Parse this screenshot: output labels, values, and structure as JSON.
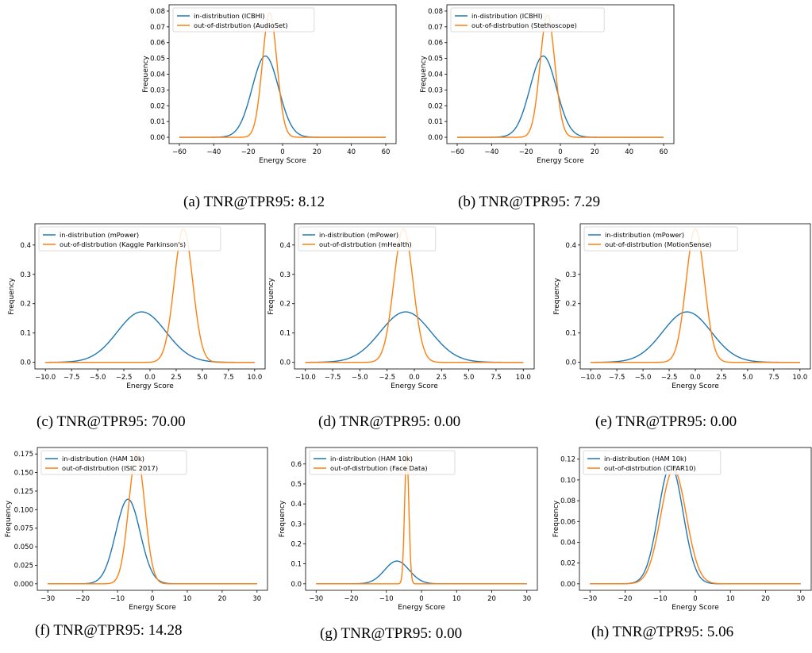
{
  "colors": {
    "in": "#1f77b4",
    "out": "#ff7f0e"
  },
  "chart_data": [
    {
      "id": "a",
      "type": "line",
      "caption": "(a) TNR@TPR95: 8.12",
      "xlabel": "Energy Score",
      "ylabel": "Frequency",
      "xlim": [
        -60,
        60
      ],
      "ylim": [
        0,
        0.08
      ],
      "xticks": [
        -60,
        -40,
        -20,
        0,
        20,
        40,
        60
      ],
      "xtick_labels": [
        "−60",
        "−40",
        "−20",
        "0",
        "20",
        "40",
        "60"
      ],
      "yticks": [
        0,
        0.01,
        0.02,
        0.03,
        0.04,
        0.05,
        0.06,
        0.07,
        0.08
      ],
      "ytick_labels": [
        "0.00",
        "0.01",
        "0.02",
        "0.03",
        "0.04",
        "0.05",
        "0.06",
        "0.07",
        "0.08"
      ],
      "legend_position": "upper-left",
      "series": [
        {
          "name": "in-distribution (ICBHI)",
          "color": "#1f77b4",
          "mean": -10,
          "std": 7.7,
          "peak": 0.0515,
          "x_range": [
            -60,
            60
          ]
        },
        {
          "name": "out-of-distrbution (AudioSet)",
          "color": "#ff7f0e",
          "mean": -7.5,
          "std": 4.2,
          "peak": 0.079,
          "x_range": [
            -60,
            60
          ]
        }
      ]
    },
    {
      "id": "b",
      "type": "line",
      "caption": "(b) TNR@TPR95: 7.29",
      "xlabel": "Energy Score",
      "ylabel": "Frequency",
      "xlim": [
        -60,
        60
      ],
      "ylim": [
        0,
        0.08
      ],
      "xticks": [
        -60,
        -40,
        -20,
        0,
        20,
        40,
        60
      ],
      "xtick_labels": [
        "−60",
        "−40",
        "−20",
        "0",
        "20",
        "40",
        "60"
      ],
      "yticks": [
        0,
        0.01,
        0.02,
        0.03,
        0.04,
        0.05,
        0.06,
        0.07,
        0.08
      ],
      "ytick_labels": [
        "0.00",
        "0.01",
        "0.02",
        "0.03",
        "0.04",
        "0.05",
        "0.06",
        "0.07",
        "0.08"
      ],
      "legend_position": "upper-left",
      "series": [
        {
          "name": "in-distribution (ICBHI)",
          "color": "#1f77b4",
          "mean": -10,
          "std": 7.7,
          "peak": 0.0515,
          "x_range": [
            -60,
            60
          ]
        },
        {
          "name": "out-of-distrbution (Stethoscope)",
          "color": "#ff7f0e",
          "mean": -7.5,
          "std": 4.3,
          "peak": 0.0775,
          "x_range": [
            -60,
            60
          ]
        }
      ]
    },
    {
      "id": "c",
      "type": "line",
      "caption": "(c) TNR@TPR95: 70.00",
      "xlabel": "Energy Score",
      "ylabel": "Frequency",
      "xlim": [
        -10,
        10
      ],
      "ylim": [
        0,
        0.45
      ],
      "xticks": [
        -10,
        -7.5,
        -5,
        -2.5,
        0,
        2.5,
        5,
        7.5,
        10
      ],
      "xtick_labels": [
        "−10.0",
        "−7.5",
        "−5.0",
        "−2.5",
        "0.0",
        "2.5",
        "5.0",
        "7.5",
        "10.0"
      ],
      "yticks": [
        0,
        0.1,
        0.2,
        0.3,
        0.4
      ],
      "ytick_labels": [
        "0.0",
        "0.1",
        "0.2",
        "0.3",
        "0.4"
      ],
      "legend_position": "upper-left",
      "series": [
        {
          "name": "in-distribution (mPower)",
          "color": "#1f77b4",
          "mean": -0.8,
          "std": 2.32,
          "peak": 0.172,
          "x_range": [
            -10,
            10
          ]
        },
        {
          "name": "out-of-distrbution (Kaggle Parkinson's)",
          "color": "#ff7f0e",
          "mean": 3.2,
          "std": 0.88,
          "peak": 0.455,
          "x_range": [
            -10,
            10
          ]
        }
      ]
    },
    {
      "id": "d",
      "type": "line",
      "caption": "(d) TNR@TPR95: 0.00",
      "xlabel": "Energy Score",
      "ylabel": "Frequency",
      "xlim": [
        -10,
        10
      ],
      "ylim": [
        0,
        0.45
      ],
      "xticks": [
        -10,
        -7.5,
        -5,
        -2.5,
        0,
        2.5,
        5,
        7.5,
        10
      ],
      "xtick_labels": [
        "−10.0",
        "−7.5",
        "−5.0",
        "−2.5",
        "0.0",
        "2.5",
        "5.0",
        "7.5",
        "10.0"
      ],
      "yticks": [
        0,
        0.1,
        0.2,
        0.3,
        0.4
      ],
      "ytick_labels": [
        "0.0",
        "0.1",
        "0.2",
        "0.3",
        "0.4"
      ],
      "legend_position": "upper-left",
      "series": [
        {
          "name": "in-distribution (mPower)",
          "color": "#1f77b4",
          "mean": -0.8,
          "std": 2.32,
          "peak": 0.172,
          "x_range": [
            -10,
            10
          ]
        },
        {
          "name": "out-of-distrbution (mHealth)",
          "color": "#ff7f0e",
          "mean": -1.0,
          "std": 0.88,
          "peak": 0.455,
          "x_range": [
            -10,
            10
          ]
        }
      ]
    },
    {
      "id": "e",
      "type": "line",
      "caption": "(e) TNR@TPR95: 0.00",
      "xlabel": "Energy Score",
      "ylabel": "Frequency",
      "xlim": [
        -10,
        10
      ],
      "ylim": [
        0,
        0.45
      ],
      "xticks": [
        -10,
        -7.5,
        -5,
        -2.5,
        0,
        2.5,
        5,
        7.5,
        10
      ],
      "xtick_labels": [
        "−10.0",
        "−7.5",
        "−5.0",
        "−2.5",
        "0.0",
        "2.5",
        "5.0",
        "7.5",
        "10.0"
      ],
      "yticks": [
        0,
        0.1,
        0.2,
        0.3,
        0.4
      ],
      "ytick_labels": [
        "0.0",
        "0.1",
        "0.2",
        "0.3",
        "0.4"
      ],
      "legend_position": "upper-left",
      "series": [
        {
          "name": "in-distribution (mPower)",
          "color": "#1f77b4",
          "mean": -0.8,
          "std": 2.32,
          "peak": 0.172,
          "x_range": [
            -10,
            10
          ]
        },
        {
          "name": "out-of-distrbution (MotionSense)",
          "color": "#ff7f0e",
          "mean": 0.0,
          "std": 0.88,
          "peak": 0.455,
          "x_range": [
            -10,
            10
          ]
        }
      ]
    },
    {
      "id": "f",
      "type": "line",
      "caption": "(f) TNR@TPR95: 14.28",
      "xlabel": "Energy Score",
      "ylabel": "Frequency",
      "xlim": [
        -30,
        30
      ],
      "ylim": [
        0,
        0.175
      ],
      "xticks": [
        -30,
        -20,
        -10,
        0,
        10,
        20,
        30
      ],
      "xtick_labels": [
        "−30",
        "−20",
        "−10",
        "0",
        "10",
        "20",
        "30"
      ],
      "yticks": [
        0,
        0.025,
        0.05,
        0.075,
        0.1,
        0.125,
        0.15,
        0.175
      ],
      "ytick_labels": [
        "0.000",
        "0.025",
        "0.050",
        "0.075",
        "0.100",
        "0.125",
        "0.150",
        "0.175"
      ],
      "legend_position": "upper-left",
      "series": [
        {
          "name": "in-distribution (HAM 10k)",
          "color": "#1f77b4",
          "mean": -7,
          "std": 3.5,
          "peak": 0.114,
          "x_range": [
            -30,
            30
          ]
        },
        {
          "name": "out-of-distrbution (ISIC 2017)",
          "color": "#ff7f0e",
          "mean": -4.5,
          "std": 2.3,
          "peak": 0.175,
          "x_range": [
            -30,
            30
          ]
        }
      ]
    },
    {
      "id": "g",
      "type": "line",
      "caption": "(g) TNR@TPR95: 0.00",
      "xlabel": "Energy Score",
      "ylabel": "Frequency",
      "xlim": [
        -30,
        30
      ],
      "ylim": [
        0,
        0.65
      ],
      "xticks": [
        -30,
        -20,
        -10,
        0,
        10,
        20,
        30
      ],
      "xtick_labels": [
        "−30",
        "−20",
        "−10",
        "0",
        "10",
        "20",
        "30"
      ],
      "yticks": [
        0,
        0.1,
        0.2,
        0.3,
        0.4,
        0.5,
        0.6
      ],
      "ytick_labels": [
        "0.0",
        "0.1",
        "0.2",
        "0.3",
        "0.4",
        "0.5",
        "0.6"
      ],
      "legend_position": "upper-left",
      "series": [
        {
          "name": "in-distribution (HAM 10k)",
          "color": "#1f77b4",
          "mean": -7,
          "std": 3.5,
          "peak": 0.114,
          "x_range": [
            -30,
            30
          ]
        },
        {
          "name": "out-of-distrbution (Face Data)",
          "color": "#ff7f0e",
          "mean": -4.2,
          "std": 0.6,
          "peak": 0.66,
          "x_range": [
            -30,
            30
          ]
        }
      ]
    },
    {
      "id": "h",
      "type": "line",
      "caption": "(h) TNR@TPR95: 5.06",
      "xlabel": "Energy Score",
      "ylabel": "Frequency",
      "xlim": [
        -30,
        30
      ],
      "ylim": [
        0,
        0.125
      ],
      "xticks": [
        -30,
        -20,
        -10,
        0,
        10,
        20,
        30
      ],
      "xtick_labels": [
        "−30",
        "−20",
        "−10",
        "0",
        "10",
        "20",
        "30"
      ],
      "yticks": [
        0,
        0.02,
        0.04,
        0.06,
        0.08,
        0.1,
        0.12
      ],
      "ytick_labels": [
        "0.00",
        "0.02",
        "0.04",
        "0.06",
        "0.08",
        "0.10",
        "0.12"
      ],
      "legend_position": "upper-left",
      "series": [
        {
          "name": "in-distribution (HAM 10k)",
          "color": "#1f77b4",
          "mean": -7,
          "std": 3.5,
          "peak": 0.114,
          "x_range": [
            -30,
            30
          ]
        },
        {
          "name": "out-of-distrbution (CIFAR10)",
          "color": "#ff7f0e",
          "mean": -6.2,
          "std": 3.6,
          "peak": 0.11,
          "x_range": [
            -30,
            30
          ]
        }
      ]
    }
  ]
}
